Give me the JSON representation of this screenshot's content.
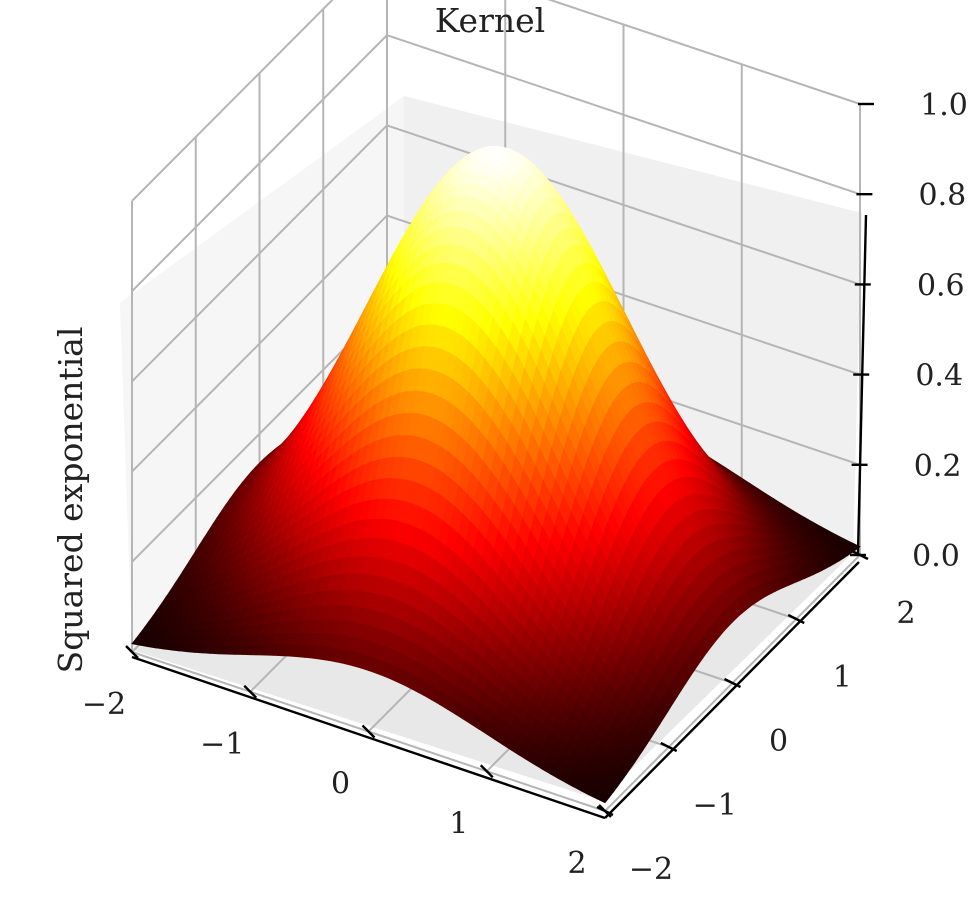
{
  "chart_data": {
    "type": "surface3d",
    "title": "Kernel",
    "zlabel": "Squared exponential",
    "xlabel": "",
    "ylabel": "",
    "x_ticks": [
      "−2",
      "−1",
      "0",
      "1",
      "2"
    ],
    "y_ticks": [
      "−2",
      "−1",
      "0",
      "1",
      "2"
    ],
    "z_ticks": [
      "0.0",
      "0.2",
      "0.4",
      "0.6",
      "0.8",
      "1.0"
    ],
    "xlim": [
      -2,
      2
    ],
    "ylim": [
      -2,
      2
    ],
    "zlim": [
      0,
      1
    ],
    "grid": true,
    "colormap": "hot",
    "function": "exp(-(x^2 + y^2)/2)",
    "peak": {
      "x": 0,
      "y": 0,
      "z": 1.0
    },
    "corner_value": 0.018
  }
}
